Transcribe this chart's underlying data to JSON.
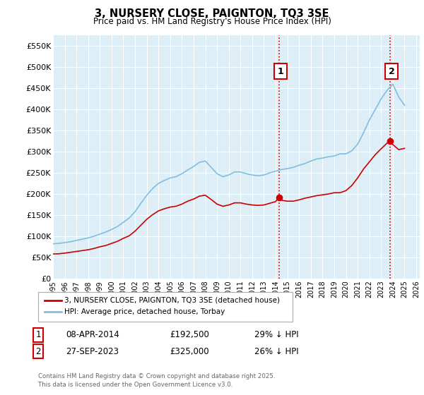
{
  "title": "3, NURSERY CLOSE, PAIGNTON, TQ3 3SE",
  "subtitle": "Price paid vs. HM Land Registry's House Price Index (HPI)",
  "ylabel_ticks": [
    "£0",
    "£50K",
    "£100K",
    "£150K",
    "£200K",
    "£250K",
    "£300K",
    "£350K",
    "£400K",
    "£450K",
    "£500K",
    "£550K"
  ],
  "ytick_values": [
    0,
    50000,
    100000,
    150000,
    200000,
    250000,
    300000,
    350000,
    400000,
    450000,
    500000,
    550000
  ],
  "ylim": [
    0,
    575000
  ],
  "xlim_start": 1995.0,
  "xlim_end": 2026.3,
  "transaction1": {
    "date_num": 2014.27,
    "price": 192500,
    "label": "1",
    "date_str": "08-APR-2014",
    "pct": "29% ↓ HPI"
  },
  "transaction2": {
    "date_num": 2023.74,
    "price": 325000,
    "label": "2",
    "date_str": "27-SEP-2023",
    "pct": "26% ↓ HPI"
  },
  "legend_entry1": "3, NURSERY CLOSE, PAIGNTON, TQ3 3SE (detached house)",
  "legend_entry2": "HPI: Average price, detached house, Torbay",
  "table_row1": [
    "1",
    "08-APR-2014",
    "£192,500",
    "29% ↓ HPI"
  ],
  "table_row2": [
    "2",
    "27-SEP-2023",
    "£325,000",
    "26% ↓ HPI"
  ],
  "footer": "Contains HM Land Registry data © Crown copyright and database right 2025.\nThis data is licensed under the Open Government Licence v3.0.",
  "hpi_color": "#7fbfdf",
  "price_color": "#cc0000",
  "vline_color": "#cc0000",
  "bg_color": "#ddeef7",
  "grid_color": "#ffffff",
  "hpi_years": [
    1995.0,
    1995.5,
    1996.0,
    1996.5,
    1997.0,
    1997.5,
    1998.0,
    1998.5,
    1999.0,
    1999.5,
    2000.0,
    2000.5,
    2001.0,
    2001.5,
    2002.0,
    2002.5,
    2003.0,
    2003.5,
    2004.0,
    2004.5,
    2005.0,
    2005.5,
    2006.0,
    2006.5,
    2007.0,
    2007.5,
    2008.0,
    2008.5,
    2009.0,
    2009.5,
    2010.0,
    2010.5,
    2011.0,
    2011.5,
    2012.0,
    2012.5,
    2013.0,
    2013.5,
    2014.0,
    2014.5,
    2015.0,
    2015.5,
    2016.0,
    2016.5,
    2017.0,
    2017.5,
    2018.0,
    2018.5,
    2019.0,
    2019.5,
    2020.0,
    2020.5,
    2021.0,
    2021.5,
    2022.0,
    2022.5,
    2023.0,
    2023.5,
    2024.0,
    2024.5,
    2025.0
  ],
  "hpi_values": [
    82000,
    83000,
    85000,
    87000,
    90000,
    93000,
    96000,
    100000,
    105000,
    110000,
    116000,
    123000,
    133000,
    143000,
    158000,
    178000,
    197000,
    213000,
    225000,
    232000,
    238000,
    241000,
    248000,
    257000,
    265000,
    275000,
    278000,
    263000,
    248000,
    241000,
    245000,
    252000,
    252000,
    248000,
    245000,
    243000,
    245000,
    250000,
    254000,
    258000,
    260000,
    263000,
    268000,
    272000,
    278000,
    283000,
    285000,
    288000,
    290000,
    295000,
    295000,
    302000,
    318000,
    345000,
    375000,
    400000,
    425000,
    445000,
    460000,
    430000,
    410000
  ],
  "price_years": [
    1995.0,
    1995.5,
    1996.0,
    1996.5,
    1997.0,
    1997.5,
    1998.0,
    1998.5,
    1999.0,
    1999.5,
    2000.0,
    2000.5,
    2001.0,
    2001.5,
    2002.0,
    2002.5,
    2003.0,
    2003.5,
    2004.0,
    2004.5,
    2005.0,
    2005.5,
    2006.0,
    2006.5,
    2007.0,
    2007.5,
    2008.0,
    2008.5,
    2009.0,
    2009.5,
    2010.0,
    2010.5,
    2011.0,
    2011.5,
    2012.0,
    2012.5,
    2013.0,
    2013.5,
    2014.0,
    2014.27,
    2014.5,
    2015.0,
    2015.5,
    2016.0,
    2016.5,
    2017.0,
    2017.5,
    2018.0,
    2018.5,
    2019.0,
    2019.5,
    2020.0,
    2020.5,
    2021.0,
    2021.5,
    2022.0,
    2022.5,
    2023.0,
    2023.5,
    2023.74,
    2024.0,
    2024.5,
    2025.0
  ],
  "price_values": [
    58000,
    58500,
    60000,
    62000,
    64000,
    66000,
    68000,
    71000,
    75000,
    78000,
    83000,
    88000,
    95000,
    101000,
    112000,
    126000,
    140000,
    151000,
    160000,
    165000,
    169000,
    171000,
    176000,
    183000,
    188000,
    195000,
    197000,
    187000,
    176000,
    171000,
    174000,
    179000,
    179000,
    176000,
    174000,
    173000,
    174000,
    178000,
    182000,
    192500,
    185000,
    183000,
    183000,
    186000,
    190000,
    193000,
    196000,
    198000,
    200000,
    203000,
    203000,
    208000,
    220000,
    238000,
    259000,
    276000,
    293000,
    307000,
    320000,
    325000,
    317000,
    305000,
    308000
  ]
}
